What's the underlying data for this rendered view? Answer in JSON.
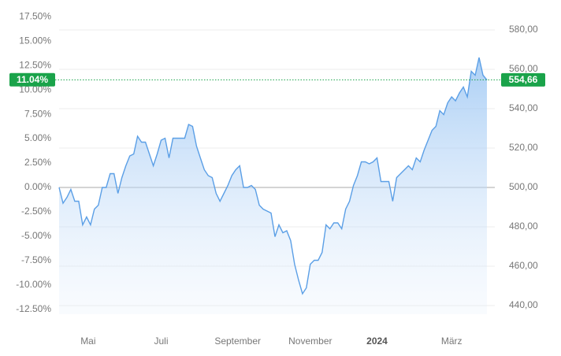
{
  "chart_data": {
    "type": "area",
    "x": [
      0,
      1,
      2,
      3,
      4,
      5,
      6,
      7,
      8,
      9,
      10,
      11,
      12,
      13,
      14,
      15,
      16,
      17,
      18,
      19,
      20,
      21,
      22,
      23,
      24,
      25,
      26,
      27,
      28,
      29,
      30,
      31,
      32,
      33,
      34,
      35,
      36,
      37,
      38,
      39,
      40,
      41,
      42,
      43,
      44,
      45,
      46,
      47,
      48,
      49,
      50,
      51,
      52,
      53,
      54,
      55,
      56,
      57,
      58,
      59,
      60,
      61,
      62,
      63,
      64,
      65,
      66,
      67,
      68,
      69,
      70,
      71,
      72,
      73,
      74,
      75,
      76,
      77,
      78,
      79,
      80,
      81,
      82,
      83,
      84,
      85,
      86,
      87,
      88,
      89,
      90,
      91,
      92,
      93,
      94,
      95,
      96,
      97,
      98,
      99,
      100,
      101,
      102,
      103,
      104,
      105,
      106,
      107,
      108,
      109
    ],
    "series": [
      {
        "color": "#5b9fe6",
        "axis": "y2",
        "values": [
          500,
          492,
          495,
          499,
          493,
          493,
          481,
          485,
          481,
          489,
          491,
          500,
          500,
          507,
          507,
          497,
          505,
          511,
          516,
          517,
          526,
          523,
          523,
          517,
          511,
          517,
          524,
          525,
          515,
          525,
          525,
          525,
          525,
          532,
          531,
          521,
          515,
          509,
          506,
          505,
          497,
          493,
          497,
          501,
          506,
          509,
          511,
          500,
          500,
          501,
          499,
          491,
          489,
          488,
          487,
          475,
          481,
          477,
          478,
          473,
          461,
          453,
          446,
          449,
          461,
          463,
          463,
          467,
          481,
          479,
          482,
          482,
          479,
          489,
          493,
          501,
          506,
          513,
          513,
          512,
          513,
          515,
          503,
          503,
          503,
          493,
          505,
          507,
          509,
          511,
          509,
          515,
          513,
          519,
          524,
          529,
          531,
          539,
          537,
          543,
          546,
          544,
          548,
          551,
          546,
          559,
          557,
          566,
          557,
          554.66
        ]
      }
    ],
    "xlim": [
      0,
      109
    ],
    "xticks": [
      {
        "value": 7.4,
        "label": "Mai"
      },
      {
        "value": 26,
        "label": "Juli"
      },
      {
        "value": 45.5,
        "label": "September"
      },
      {
        "value": 64,
        "label": "November"
      },
      {
        "value": 81,
        "label": "2024"
      },
      {
        "value": 100,
        "label": "März"
      }
    ],
    "ylim": [
      -13,
      17.6
    ],
    "yticks": [
      {
        "value": 17.5,
        "label": "17.50%"
      },
      {
        "value": 15,
        "label": "15.00%"
      },
      {
        "value": 12.5,
        "label": "12.50%"
      },
      {
        "value": 10,
        "label": "10.00%"
      },
      {
        "value": 7.5,
        "label": "7.50%"
      },
      {
        "value": 5,
        "label": "5.00%"
      },
      {
        "value": 2.5,
        "label": "2.50%"
      },
      {
        "value": 0,
        "label": "0.00%"
      },
      {
        "value": -2.5,
        "label": "-2.50%"
      },
      {
        "value": -5,
        "label": "-5.00%"
      },
      {
        "value": -7.5,
        "label": "-7.50%"
      },
      {
        "value": -10,
        "label": "-10.00%"
      },
      {
        "value": -12.5,
        "label": "-12.50%"
      }
    ],
    "y2lim": [
      435,
      588
    ],
    "y2ticks": [
      {
        "value": 580,
        "label": "580,00"
      },
      {
        "value": 560,
        "label": "560,00"
      },
      {
        "value": 540,
        "label": "540,00"
      },
      {
        "value": 520,
        "label": "520,00"
      },
      {
        "value": 500,
        "label": "500,00"
      },
      {
        "value": 480,
        "label": "480,00"
      },
      {
        "value": 460,
        "label": "460,00"
      },
      {
        "value": 440,
        "label": "440,00"
      }
    ],
    "current": {
      "percent": {
        "value": 11.04,
        "label": "11.04%"
      },
      "price": {
        "value": 554.66,
        "label": "554,66"
      },
      "color": "#1aa34a"
    },
    "grid": true
  }
}
